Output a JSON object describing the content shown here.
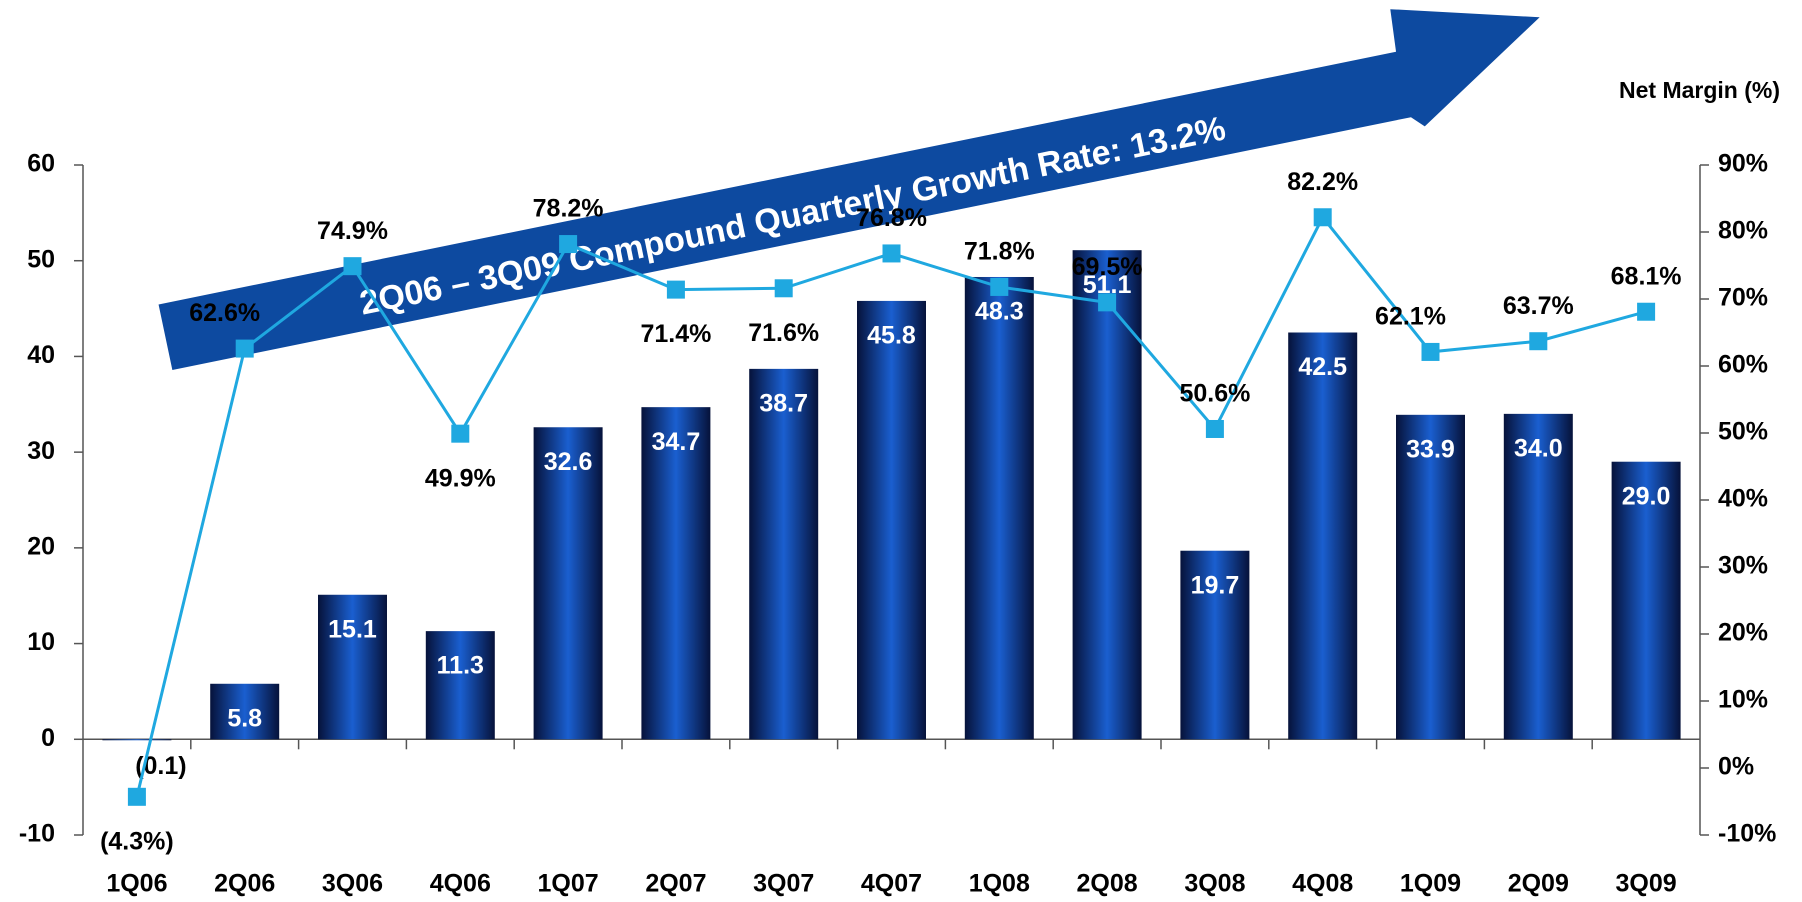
{
  "chart_data": {
    "type": "bar_line",
    "annotation": "2Q06 – 3Q09 Compound Quarterly Growth Rate: 13.2%",
    "y2_label": "Net Margin (%)",
    "categories": [
      "1Q06",
      "2Q06",
      "3Q06",
      "4Q06",
      "1Q07",
      "2Q07",
      "3Q07",
      "4Q07",
      "1Q08",
      "2Q08",
      "3Q08",
      "4Q08",
      "1Q09",
      "2Q09",
      "3Q09"
    ],
    "series": [
      {
        "type": "bar",
        "color": "#1a5fd0",
        "values": [
          -0.1,
          5.8,
          15.1,
          11.3,
          32.6,
          34.7,
          38.7,
          45.8,
          48.3,
          51.1,
          19.7,
          42.5,
          33.9,
          34.0,
          29.0
        ],
        "value_labels": [
          "(0.1)",
          "5.8",
          "15.1",
          "11.3",
          "32.6",
          "34.7",
          "38.7",
          "45.8",
          "48.3",
          "51.1",
          "19.7",
          "42.5",
          "33.9",
          "34.0",
          "29.0"
        ]
      },
      {
        "type": "line",
        "axis": "y2",
        "color": "#1fa8e0",
        "values": [
          -4.3,
          62.6,
          74.9,
          49.9,
          78.2,
          71.4,
          71.6,
          76.8,
          71.8,
          69.5,
          50.6,
          82.2,
          62.1,
          63.7,
          68.1
        ],
        "value_labels": [
          "(4.3%)",
          "62.6%",
          "74.9%",
          "49.9%",
          "78.2%",
          "71.4%",
          "71.6%",
          "76.8%",
          "71.8%",
          "69.5%",
          "50.6%",
          "82.2%",
          "62.1%",
          "63.7%",
          "68.1%"
        ]
      }
    ],
    "ylim": [
      -10,
      60
    ],
    "yticks": [
      -10,
      0,
      10,
      20,
      30,
      40,
      50,
      60
    ],
    "y2lim": [
      -10,
      90
    ],
    "y2ticks": [
      {
        "value": -10,
        "label": "-10%"
      },
      {
        "value": 0,
        "label": "0%"
      },
      {
        "value": 10,
        "label": "10%"
      },
      {
        "value": 20,
        "label": "20%"
      },
      {
        "value": 30,
        "label": "30%"
      },
      {
        "value": 40,
        "label": "40%"
      },
      {
        "value": 50,
        "label": "50%"
      },
      {
        "value": 60,
        "label": "60%"
      },
      {
        "value": 70,
        "label": "70%"
      },
      {
        "value": 80,
        "label": "80%"
      },
      {
        "value": 90,
        "label": "90%"
      }
    ]
  }
}
